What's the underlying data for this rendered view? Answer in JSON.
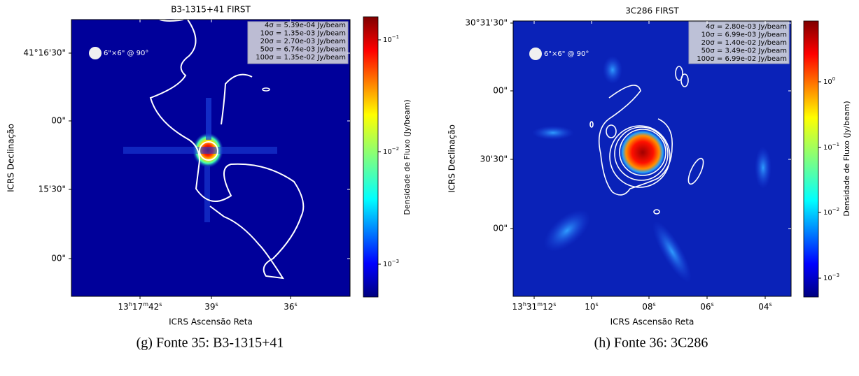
{
  "panels": [
    {
      "title": "B3-1315+41 FIRST",
      "legend": [
        "4σ = 5.39e-04 Jy/beam",
        "10σ = 1.35e-03 Jy/beam",
        "20σ = 2.70e-03 Jy/beam",
        "50σ = 6.74e-03 Jy/beam",
        "100σ = 1.35e-02 Jy/beam"
      ],
      "beam": "6\"×6\" @ 90°",
      "x_label": "ICRS Ascensão Reta",
      "y_label": "ICRS Declinação",
      "x_ticks": [
        [
          "13",
          "h",
          "17",
          "m",
          "42",
          "s"
        ],
        [
          "39",
          "s"
        ],
        [
          "36",
          "s"
        ]
      ],
      "y_ticks": [
        "41°16'30\"",
        "00\"",
        "15'30\"",
        "00\""
      ],
      "colorbar_label": "Densidade de Fluxo (Jy/beam)",
      "colorbar_ticks": [
        [
          "10",
          "−1"
        ],
        [
          "10",
          "−2"
        ],
        [
          "10",
          "−3"
        ]
      ],
      "caption": "(g) Fonte 35: B3-1315+41"
    },
    {
      "title": "3C286 FIRST",
      "legend": [
        "4σ = 2.80e-03 Jy/beam",
        "10σ = 6.99e-03 Jy/beam",
        "20σ = 1.40e-02 Jy/beam",
        "50σ = 3.49e-02 Jy/beam",
        "100σ = 6.99e-02 Jy/beam"
      ],
      "beam": "6\"×6\" @ 90°",
      "x_label": "ICRS Ascensão Reta",
      "y_label": "ICRS Declinação",
      "x_ticks": [
        [
          "13",
          "h",
          "31",
          "m",
          "12",
          "s"
        ],
        [
          "10",
          "s"
        ],
        [
          "08",
          "s"
        ],
        [
          "06",
          "s"
        ],
        [
          "04",
          "s"
        ]
      ],
      "y_ticks": [
        "30°31'30\"",
        "00\"",
        "30'30\"",
        "00\""
      ],
      "colorbar_label": "Densidade de Fluxo (Jy/beam)",
      "colorbar_ticks": [
        [
          "10",
          "0"
        ],
        [
          "10",
          "−1"
        ],
        [
          "10",
          "−2"
        ],
        [
          "10",
          "−3"
        ]
      ],
      "caption": "(h) Fonte 36: 3C286"
    }
  ]
}
